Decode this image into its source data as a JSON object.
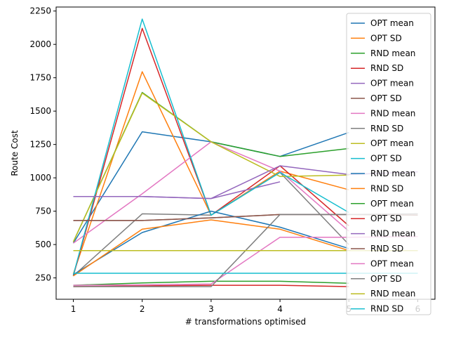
{
  "chart_data": {
    "type": "line",
    "title": "",
    "xlabel": "# transformations optimised",
    "ylabel": "Route Cost",
    "xlim": [
      0.75,
      6.25
    ],
    "ylim": [
      90,
      2280
    ],
    "xticks": [
      1,
      2,
      3,
      4,
      5,
      6
    ],
    "yticks": [
      250,
      500,
      750,
      1000,
      1250,
      1500,
      1750,
      2000,
      2250
    ],
    "grid": false,
    "legend_position": "top-right",
    "series": [
      {
        "name": "OPT mean",
        "color": "#1f77b4",
        "x": [
          1,
          2,
          3,
          4,
          5
        ],
        "y": [
          510,
          1345,
          1270,
          1160,
          1340
        ]
      },
      {
        "name": "OPT SD",
        "color": "#ff7f0e",
        "x": [
          1,
          2,
          3,
          4,
          5
        ],
        "y": [
          280,
          1795,
          720,
          1050,
          910
        ]
      },
      {
        "name": "RND mean",
        "color": "#2ca02c",
        "x": [
          1,
          2,
          3,
          4,
          5
        ],
        "y": [
          520,
          1640,
          1270,
          1160,
          1220
        ]
      },
      {
        "name": "RND SD",
        "color": "#d62728",
        "x": [
          1,
          2,
          3,
          4,
          5
        ],
        "y": [
          265,
          2120,
          720,
          1090,
          640
        ]
      },
      {
        "name": "OPT mean",
        "color": "#9467bd",
        "x": [
          1,
          2,
          3,
          4
        ],
        "y": [
          860,
          860,
          845,
          970
        ]
      },
      {
        "name": "OPT SD",
        "color": "#8c564b",
        "x": [
          1,
          2,
          3,
          4,
          5
        ],
        "y": [
          680,
          680,
          700,
          725,
          725
        ]
      },
      {
        "name": "RND mean",
        "color": "#e377c2",
        "x": [
          1,
          2,
          3,
          4,
          5
        ],
        "y": [
          510,
          880,
          1270,
          1050,
          600
        ]
      },
      {
        "name": "RND SD",
        "color": "#7f7f7f",
        "x": [
          1,
          2,
          3,
          4,
          5
        ],
        "y": [
          265,
          730,
          720,
          1040,
          500
        ]
      },
      {
        "name": "OPT mean",
        "color": "#bcbd22",
        "x": [
          1,
          2,
          3,
          4,
          5
        ],
        "y": [
          520,
          1635,
          1270,
          1010,
          1020
        ]
      },
      {
        "name": "OPT SD",
        "color": "#17becf",
        "x": [
          1,
          2,
          3,
          4,
          5
        ],
        "y": [
          270,
          2190,
          720,
          1040,
          740
        ]
      },
      {
        "name": "RND mean",
        "color": "#1f77b4",
        "x": [
          1,
          2,
          3,
          4,
          5
        ],
        "y": [
          275,
          590,
          750,
          630,
          470
        ]
      },
      {
        "name": "RND SD",
        "color": "#ff7f0e",
        "x": [
          1,
          2,
          3,
          4,
          5
        ],
        "y": [
          265,
          615,
          685,
          615,
          455
        ]
      },
      {
        "name": "OPT mean",
        "color": "#2ca02c",
        "x": [
          1,
          2,
          3,
          4,
          5
        ],
        "y": [
          195,
          212,
          225,
          225,
          210
        ]
      },
      {
        "name": "OPT SD",
        "color": "#d62728",
        "x": [
          1,
          2,
          3,
          4,
          5
        ],
        "y": [
          185,
          190,
          195,
          195,
          185
        ]
      },
      {
        "name": "RND mean",
        "color": "#9467bd",
        "x": [
          1,
          2,
          3,
          4,
          5,
          6
        ],
        "y": [
          860,
          860,
          845,
          1090,
          1025,
          1045
        ]
      },
      {
        "name": "RND SD",
        "color": "#8c564b",
        "x": [
          1,
          2,
          3,
          4,
          5,
          6
        ],
        "y": [
          680,
          680,
          700,
          725,
          725,
          720
        ]
      },
      {
        "name": "OPT mean",
        "color": "#e377c2",
        "x": [
          1,
          2,
          3,
          4,
          5,
          6
        ],
        "y": [
          195,
          198,
          205,
          555,
          555,
          560
        ]
      },
      {
        "name": "OPT SD",
        "color": "#7f7f7f",
        "x": [
          1,
          2,
          3,
          4,
          5,
          6
        ],
        "y": [
          185,
          185,
          185,
          725,
          725,
          730
        ]
      },
      {
        "name": "RND mean",
        "color": "#bcbd22",
        "x": [
          1,
          2,
          3,
          4,
          5,
          6
        ],
        "y": [
          455,
          455,
          455,
          455,
          455,
          455
        ]
      },
      {
        "name": "RND SD",
        "color": "#17becf",
        "x": [
          1,
          2,
          3,
          4,
          5,
          6
        ],
        "y": [
          285,
          285,
          285,
          285,
          285,
          285
        ]
      }
    ]
  }
}
